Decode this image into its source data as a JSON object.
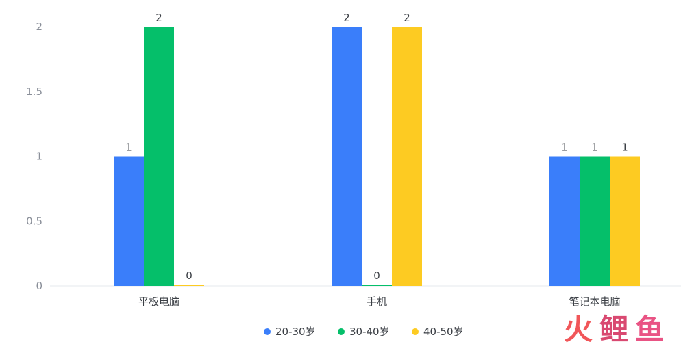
{
  "chart_data": {
    "type": "bar",
    "categories": [
      "平板电脑",
      "手机",
      "笔记本电脑"
    ],
    "series": [
      {
        "name": "20-30岁",
        "color": "#3a7efa",
        "values": [
          1,
          2,
          1
        ]
      },
      {
        "name": "30-40岁",
        "color": "#05bf6a",
        "values": [
          2,
          0,
          1
        ]
      },
      {
        "name": "40-50岁",
        "color": "#fdcb22",
        "values": [
          0,
          2,
          1
        ]
      }
    ],
    "ylim": [
      0,
      2
    ],
    "yticks": [
      "0",
      "0.5",
      "1",
      "1.5",
      "2"
    ],
    "grid": false,
    "legend_position": "bottom-center",
    "show_data_labels": true
  },
  "watermark": {
    "text": "火鲤鱼",
    "colors": [
      "#f0484c",
      "#d63a66",
      "#e8457a"
    ]
  }
}
